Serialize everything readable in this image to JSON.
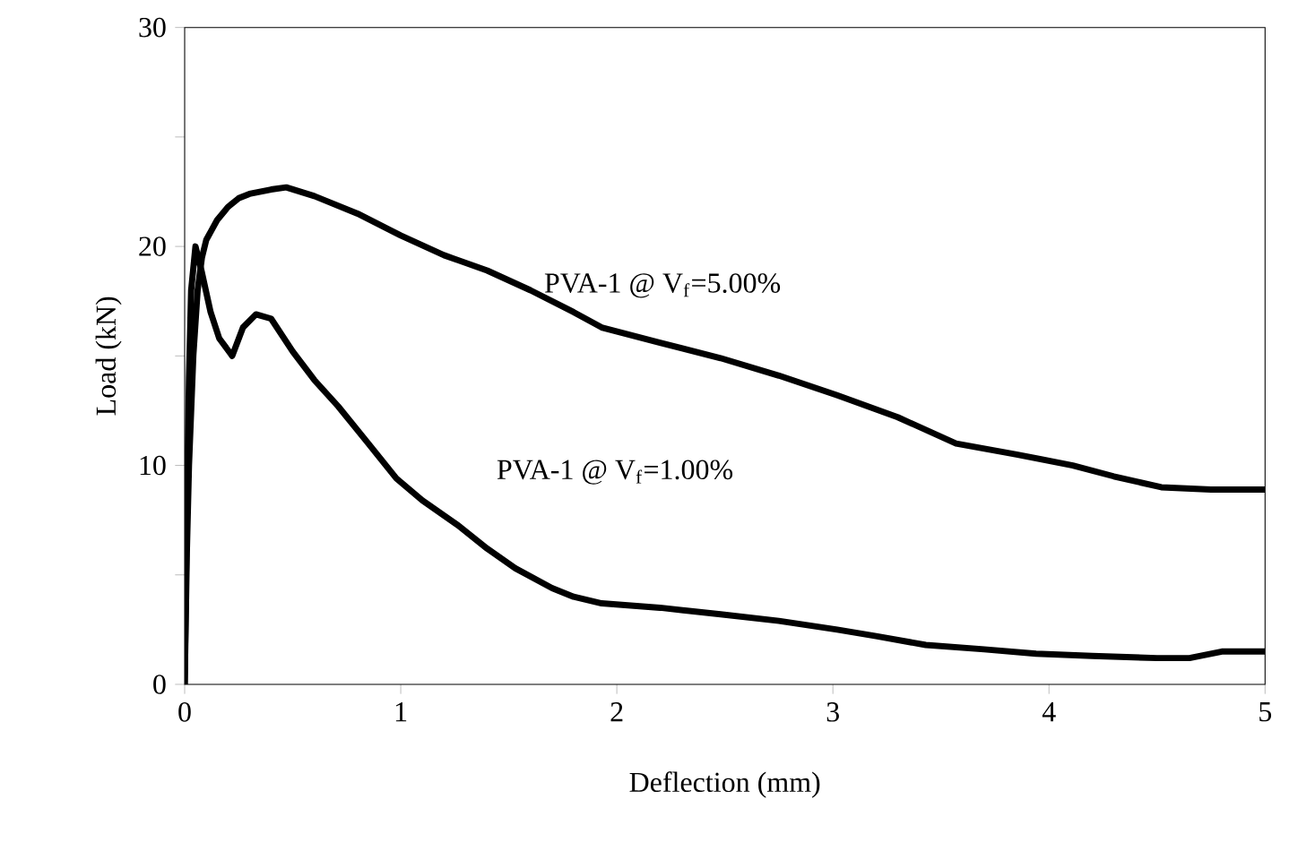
{
  "chart_data": {
    "type": "line",
    "xlabel": "Deflection (mm)",
    "ylabel": "Load (kN)",
    "xlim": [
      0,
      5
    ],
    "ylim": [
      0,
      30
    ],
    "xticks": [
      0,
      1,
      2,
      3,
      4,
      5
    ],
    "yticks": [
      0,
      {
        "value": 5,
        "label": null
      },
      10,
      {
        "value": 15,
        "label": null
      },
      20,
      {
        "value": 25,
        "label": null
      },
      30
    ],
    "marker": "none",
    "line_style": "solid",
    "series": [
      {
        "name": "PVA-1 @ V$_{f}$=5.00%",
        "color": "#000000",
        "x": [
          0,
          0.01,
          0.02,
          0.04,
          0.06,
          0.08,
          0.1,
          0.15,
          0.2,
          0.25,
          0.3,
          0.4,
          0.47,
          0.6,
          0.8,
          1.0,
          1.2,
          1.4,
          1.6,
          1.8,
          1.93,
          2.2,
          2.48,
          2.75,
          3.02,
          3.3,
          3.57,
          3.85,
          4.11,
          4.3,
          4.52,
          4.75,
          5.0
        ],
        "values": [
          0,
          6,
          10,
          15,
          18,
          19.5,
          20.3,
          21.2,
          21.8,
          22.2,
          22.4,
          22.6,
          22.7,
          22.3,
          21.5,
          20.5,
          19.6,
          18.9,
          18,
          17,
          16.3,
          15.6,
          14.9,
          14.1,
          13.2,
          12.2,
          11,
          10.5,
          10,
          9.5,
          9,
          8.9,
          8.9
        ]
      },
      {
        "name": "PVA-1 @ V$_{f}$=1.00%",
        "color": "#000000",
        "x": [
          0,
          0.01,
          0.02,
          0.03,
          0.05,
          0.08,
          0.12,
          0.16,
          0.22,
          0.27,
          0.33,
          0.4,
          0.5,
          0.6,
          0.71,
          0.85,
          0.98,
          1.1,
          1.26,
          1.4,
          1.53,
          1.7,
          1.8,
          1.93,
          2.2,
          2.48,
          2.75,
          3.02,
          3.2,
          3.43,
          3.7,
          3.94,
          4.2,
          4.5,
          4.65,
          4.8,
          5.0
        ],
        "values": [
          0,
          8,
          14,
          18,
          20,
          18.8,
          17,
          15.8,
          15,
          16.3,
          16.9,
          16.7,
          15.2,
          13.9,
          12.7,
          11,
          9.4,
          8.4,
          7.3,
          6.2,
          5.3,
          4.4,
          4,
          3.7,
          3.5,
          3.2,
          2.9,
          2.5,
          2.2,
          1.8,
          1.6,
          1.4,
          1.3,
          1.2,
          1.2,
          1.5,
          1.5
        ]
      }
    ]
  }
}
